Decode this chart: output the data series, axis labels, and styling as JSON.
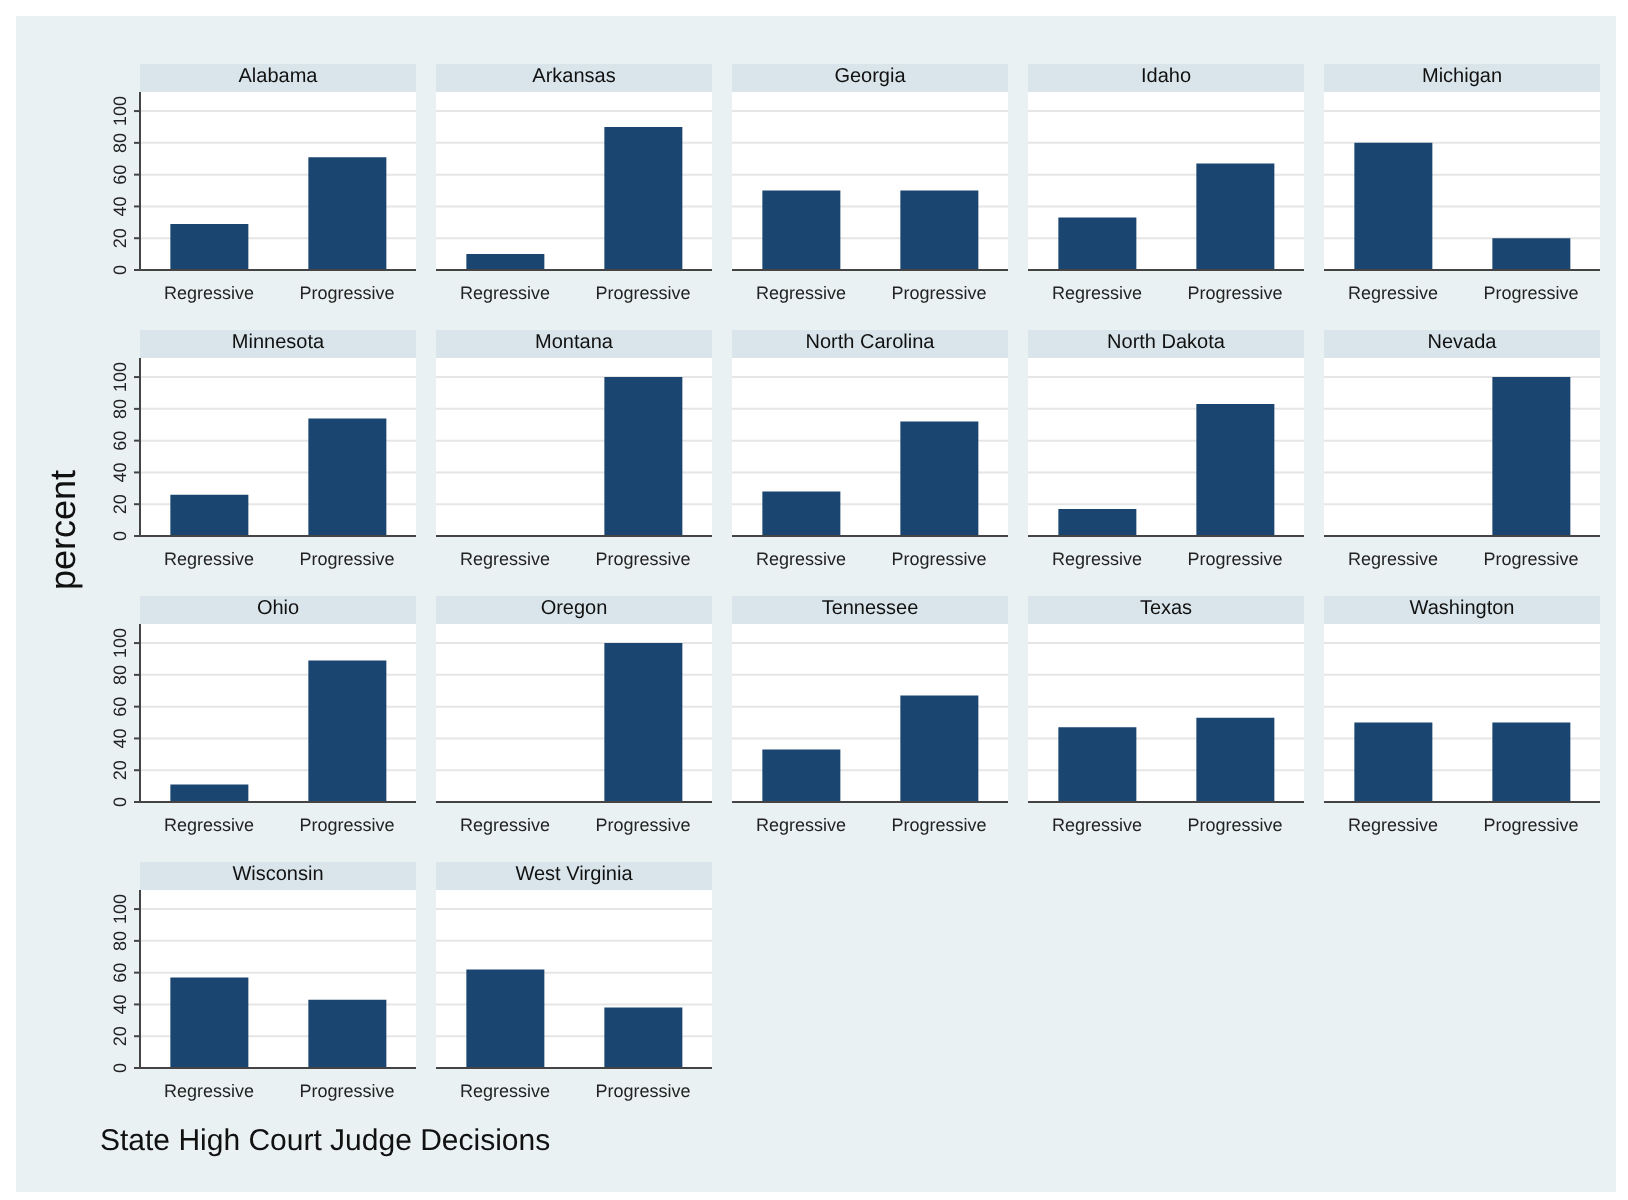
{
  "chart_data": [
    {
      "type": "bar",
      "title": "Alabama",
      "categories": [
        "Regressive",
        "Progressive"
      ],
      "values": [
        29,
        71
      ],
      "color": "#1a4570",
      "ylim": [
        0,
        112
      ],
      "yticks": [
        0,
        20,
        40,
        60,
        80,
        100
      ],
      "grid": "y"
    },
    {
      "type": "bar",
      "title": "Arkansas",
      "categories": [
        "Regressive",
        "Progressive"
      ],
      "values": [
        10,
        90
      ],
      "color": "#1a4570",
      "ylim": [
        0,
        112
      ],
      "yticks": [
        0,
        20,
        40,
        60,
        80,
        100
      ],
      "grid": "y",
      "tick_labels": "x"
    },
    {
      "type": "bar",
      "title": "Georgia",
      "categories": [
        "Regressive",
        "Progressive"
      ],
      "values": [
        50,
        50
      ],
      "color": "#1a4570",
      "ylim": [
        0,
        112
      ],
      "yticks": [
        0,
        20,
        40,
        60,
        80,
        100
      ],
      "grid": "y",
      "tick_labels": "x"
    },
    {
      "type": "bar",
      "title": "Idaho",
      "categories": [
        "Regressive",
        "Progressive"
      ],
      "values": [
        33,
        67
      ],
      "color": "#1a4570",
      "ylim": [
        0,
        112
      ],
      "yticks": [
        0,
        20,
        40,
        60,
        80,
        100
      ],
      "grid": "y",
      "tick_labels": "x"
    },
    {
      "type": "bar",
      "title": "Michigan",
      "categories": [
        "Regressive",
        "Progressive"
      ],
      "values": [
        80,
        20
      ],
      "color": "#1a4570",
      "ylim": [
        0,
        112
      ],
      "yticks": [
        0,
        20,
        40,
        60,
        80,
        100
      ],
      "grid": "y",
      "tick_labels": "x"
    },
    {
      "type": "bar",
      "title": "Minnesota",
      "ylabel": "percent",
      "categories": [
        "Regressive",
        "Progressive"
      ],
      "values": [
        26,
        74
      ],
      "color": "#1a4570",
      "ylim": [
        0,
        112
      ],
      "yticks": [
        0,
        20,
        40,
        60,
        80,
        100
      ],
      "grid": "y"
    },
    {
      "type": "bar",
      "title": "Montana",
      "categories": [
        "Regressive",
        "Progressive"
      ],
      "values": [
        0,
        100
      ],
      "color": "#1a4570",
      "ylim": [
        0,
        112
      ],
      "yticks": [
        0,
        20,
        40,
        60,
        80,
        100
      ],
      "grid": "y",
      "tick_labels": "x"
    },
    {
      "type": "bar",
      "title": "North Carolina",
      "categories": [
        "Regressive",
        "Progressive"
      ],
      "values": [
        28,
        72
      ],
      "color": "#1a4570",
      "ylim": [
        0,
        112
      ],
      "yticks": [
        0,
        20,
        40,
        60,
        80,
        100
      ],
      "grid": "y",
      "tick_labels": "x"
    },
    {
      "type": "bar",
      "title": "North Dakota",
      "categories": [
        "Regressive",
        "Progressive"
      ],
      "values": [
        17,
        83
      ],
      "color": "#1a4570",
      "ylim": [
        0,
        112
      ],
      "yticks": [
        0,
        20,
        40,
        60,
        80,
        100
      ],
      "grid": "y",
      "tick_labels": "x"
    },
    {
      "type": "bar",
      "title": "Nevada",
      "categories": [
        "Regressive",
        "Progressive"
      ],
      "values": [
        0,
        100
      ],
      "color": "#1a4570",
      "ylim": [
        0,
        112
      ],
      "yticks": [
        0,
        20,
        40,
        60,
        80,
        100
      ],
      "grid": "y",
      "tick_labels": "x"
    },
    {
      "type": "bar",
      "title": "Ohio",
      "categories": [
        "Regressive",
        "Progressive"
      ],
      "values": [
        11,
        89
      ],
      "color": "#1a4570",
      "ylim": [
        0,
        112
      ],
      "yticks": [
        0,
        20,
        40,
        60,
        80,
        100
      ],
      "grid": "y"
    },
    {
      "type": "bar",
      "title": "Oregon",
      "categories": [
        "Regressive",
        "Progressive"
      ],
      "values": [
        0,
        100
      ],
      "color": "#1a4570",
      "ylim": [
        0,
        112
      ],
      "yticks": [
        0,
        20,
        40,
        60,
        80,
        100
      ],
      "grid": "y",
      "tick_labels": "x"
    },
    {
      "type": "bar",
      "title": "Tennessee",
      "categories": [
        "Regressive",
        "Progressive"
      ],
      "values": [
        33,
        67
      ],
      "color": "#1a4570",
      "ylim": [
        0,
        112
      ],
      "yticks": [
        0,
        20,
        40,
        60,
        80,
        100
      ],
      "grid": "y",
      "tick_labels": "x"
    },
    {
      "type": "bar",
      "title": "Texas",
      "categories": [
        "Regressive",
        "Progressive"
      ],
      "values": [
        47,
        53
      ],
      "color": "#1a4570",
      "ylim": [
        0,
        112
      ],
      "yticks": [
        0,
        20,
        40,
        60,
        80,
        100
      ],
      "grid": "y",
      "tick_labels": "x"
    },
    {
      "type": "bar",
      "title": "Washington",
      "categories": [
        "Regressive",
        "Progressive"
      ],
      "values": [
        50,
        50
      ],
      "color": "#1a4570",
      "ylim": [
        0,
        112
      ],
      "yticks": [
        0,
        20,
        40,
        60,
        80,
        100
      ],
      "grid": "y",
      "tick_labels": "x"
    },
    {
      "type": "bar",
      "title": "Wisconsin",
      "categories": [
        "Regressive",
        "Progressive"
      ],
      "values": [
        57,
        43
      ],
      "color": "#1a4570",
      "ylim": [
        0,
        112
      ],
      "yticks": [
        0,
        20,
        40,
        60,
        80,
        100
      ],
      "grid": "y",
      "annotations": [
        "State High Court Judge Decisions"
      ]
    },
    {
      "type": "bar",
      "title": "West Virginia",
      "categories": [
        "Regressive",
        "Progressive"
      ],
      "values": [
        62,
        38
      ],
      "color": "#1a4570",
      "ylim": [
        0,
        112
      ],
      "yticks": [
        0,
        20,
        40,
        60,
        80,
        100
      ],
      "grid": "y",
      "tick_labels": "x"
    }
  ]
}
